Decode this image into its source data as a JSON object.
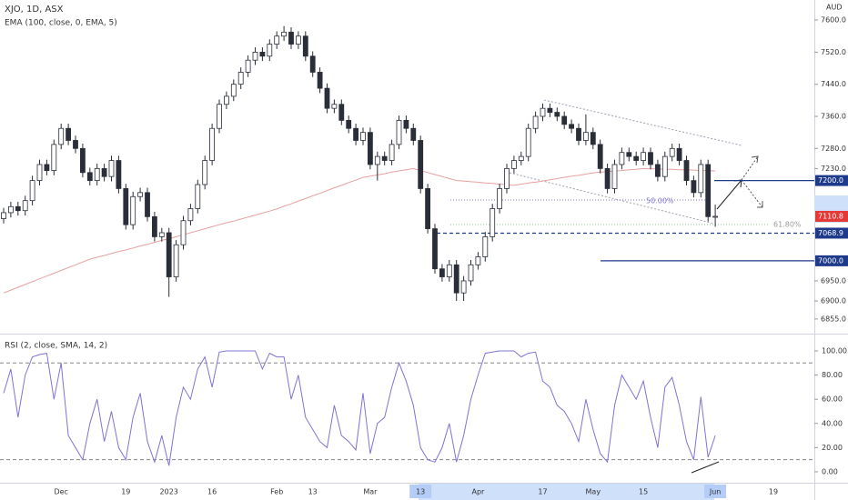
{
  "chart_data": {
    "type": "candlestick",
    "title": "XJO, 1D, ASX",
    "indicator_label": "EMA (100, close, 0, EMA, 5)",
    "currency": "AUD",
    "categories": [
      null,
      null,
      null,
      null,
      null,
      null,
      null,
      null,
      "Dec",
      null,
      null,
      null,
      null,
      null,
      null,
      null,
      null,
      "19",
      null,
      null,
      null,
      null,
      null,
      "2023",
      null,
      null,
      null,
      null,
      null,
      "16",
      null,
      null,
      null,
      null,
      null,
      null,
      null,
      null,
      "Feb",
      null,
      null,
      null,
      null,
      "13",
      null,
      null,
      null,
      null,
      null,
      null,
      null,
      "Mar",
      null,
      null,
      null,
      null,
      null,
      null,
      "13",
      null,
      null,
      null,
      null,
      null,
      null,
      null,
      "Apr",
      null,
      null,
      null,
      null,
      null,
      null,
      null,
      null,
      "17",
      null,
      null,
      null,
      null,
      null,
      null,
      "May",
      null,
      null,
      null,
      null,
      null,
      null,
      "15",
      null,
      null,
      null,
      null,
      null,
      null,
      null,
      null,
      null,
      "Jun"
    ],
    "future_labels": [
      "19"
    ],
    "open": [
      7105,
      7120,
      7135,
      7125,
      7150,
      7200,
      7240,
      7225,
      7290,
      7330,
      7300,
      7280,
      7220,
      7200,
      7230,
      7210,
      7250,
      7180,
      7090,
      7160,
      7170,
      7110,
      7060,
      7070,
      6960,
      7040,
      7100,
      7130,
      7190,
      7250,
      7330,
      7390,
      7410,
      7440,
      7470,
      7500,
      7520,
      7510,
      7540,
      7560,
      7570,
      7540,
      7560,
      7510,
      7470,
      7430,
      7380,
      7390,
      7350,
      7330,
      7300,
      7320,
      7240,
      7260,
      7250,
      7290,
      7350,
      7330,
      7300,
      7180,
      7080,
      6980,
      6960,
      6990,
      6920,
      6950,
      6990,
      7010,
      7060,
      7130,
      7180,
      7230,
      7250,
      7260,
      7330,
      7360,
      7380,
      7370,
      7360,
      7340,
      7330,
      7300,
      7320,
      7290,
      7230,
      7180,
      7240,
      7270,
      7260,
      7250,
      7270,
      7240,
      7210,
      7260,
      7280,
      7250,
      7200,
      7170,
      7240,
      7110
    ],
    "high": [
      7132,
      7147,
      7147,
      7162,
      7212,
      7252,
      7252,
      7302,
      7342,
      7342,
      7312,
      7292,
      7232,
      7242,
      7242,
      7262,
      7262,
      7192,
      7172,
      7182,
      7182,
      7122,
      7082,
      7082,
      7052,
      7112,
      7142,
      7202,
      7262,
      7342,
      7402,
      7422,
      7452,
      7482,
      7512,
      7532,
      7532,
      7552,
      7572,
      7585,
      7582,
      7572,
      7572,
      7522,
      7482,
      7442,
      7402,
      7402,
      7362,
      7342,
      7332,
      7332,
      7272,
      7272,
      7302,
      7362,
      7362,
      7342,
      7312,
      7192,
      7092,
      6992,
      7002,
      7002,
      6962,
      7002,
      7022,
      7072,
      7142,
      7192,
      7242,
      7262,
      7272,
      7342,
      7372,
      7392,
      7392,
      7382,
      7372,
      7352,
      7342,
      7365,
      7332,
      7302,
      7242,
      7252,
      7282,
      7282,
      7272,
      7282,
      7282,
      7252,
      7272,
      7292,
      7292,
      7262,
      7212,
      7252,
      7252,
      7140
    ],
    "low": [
      7093,
      7108,
      7113,
      7113,
      7138,
      7188,
      7213,
      7213,
      7278,
      7288,
      7268,
      7208,
      7188,
      7188,
      7198,
      7198,
      7168,
      7078,
      7078,
      7148,
      7098,
      7048,
      7048,
      6910,
      6948,
      7028,
      7088,
      7118,
      7178,
      7238,
      7318,
      7378,
      7398,
      7428,
      7458,
      7488,
      7498,
      7498,
      7528,
      7548,
      7528,
      7528,
      7498,
      7458,
      7418,
      7368,
      7368,
      7338,
      7318,
      7288,
      7288,
      7228,
      7200,
      7238,
      7238,
      7278,
      7318,
      7288,
      7168,
      7068,
      6968,
      6948,
      6948,
      6900,
      6900,
      6938,
      6978,
      6998,
      7048,
      7118,
      7168,
      7218,
      7238,
      7248,
      7318,
      7348,
      7358,
      7348,
      7328,
      7318,
      7288,
      7288,
      7278,
      7218,
      7168,
      7168,
      7228,
      7248,
      7238,
      7238,
      7228,
      7198,
      7198,
      7248,
      7238,
      7188,
      7158,
      7158,
      7098,
      7085
    ],
    "close": [
      7120,
      7135,
      7125,
      7150,
      7200,
      7240,
      7225,
      7290,
      7330,
      7300,
      7280,
      7220,
      7200,
      7230,
      7210,
      7250,
      7180,
      7090,
      7160,
      7170,
      7110,
      7060,
      7070,
      6960,
      7040,
      7100,
      7130,
      7190,
      7250,
      7330,
      7390,
      7410,
      7440,
      7470,
      7500,
      7520,
      7510,
      7540,
      7560,
      7570,
      7540,
      7560,
      7510,
      7470,
      7430,
      7380,
      7390,
      7350,
      7330,
      7300,
      7320,
      7240,
      7260,
      7250,
      7290,
      7350,
      7330,
      7300,
      7180,
      7080,
      6980,
      6960,
      6990,
      6920,
      6950,
      6990,
      7010,
      7060,
      7130,
      7180,
      7230,
      7250,
      7260,
      7330,
      7360,
      7380,
      7370,
      7360,
      7340,
      7330,
      7300,
      7320,
      7290,
      7230,
      7180,
      7240,
      7270,
      7260,
      7250,
      7270,
      7240,
      7210,
      7260,
      7280,
      7250,
      7200,
      7170,
      7240,
      7110,
      7110.8
    ],
    "up_color": "#ffffff",
    "down_color": "#2a2e39",
    "wick_color": "#2a2e39",
    "ema": {
      "color": "#e8a0a0",
      "values": [
        6920,
        6927,
        6934,
        6941,
        6948,
        6955,
        6962,
        6969,
        6976,
        6983,
        6990,
        6997,
        7004,
        7009,
        7013,
        7018,
        7023,
        7027,
        7032,
        7037,
        7041,
        7046,
        7051,
        7055,
        7060,
        7065,
        7070,
        7075,
        7080,
        7085,
        7090,
        7095,
        7099,
        7104,
        7109,
        7114,
        7119,
        7124,
        7129,
        7136,
        7142,
        7149,
        7155,
        7162,
        7168,
        7175,
        7182,
        7188,
        7195,
        7201,
        7208,
        7211,
        7214,
        7217,
        7221,
        7224,
        7227,
        7230,
        7225,
        7220,
        7215,
        7210,
        7205,
        7200,
        7199,
        7197,
        7196,
        7194,
        7193,
        7191,
        7190,
        7188,
        7191,
        7194,
        7196,
        7199,
        7202,
        7205,
        7208,
        7211,
        7213,
        7216,
        7219,
        7221,
        7222,
        7224,
        7225,
        7227,
        7228,
        7230,
        7229,
        7229,
        7228,
        7228,
        7227,
        7227,
        7226,
        7225,
        7225,
        7224
      ]
    },
    "ylim": [
      6823,
      7650
    ],
    "yticks": [
      {
        "value": 7600,
        "label": "7600.0"
      },
      {
        "value": 7520,
        "label": "7520.0"
      },
      {
        "value": 7440,
        "label": "7440.0"
      },
      {
        "value": 7360,
        "label": "7360.0"
      },
      {
        "value": 7280,
        "label": "7280.0"
      },
      {
        "value": 7230,
        "label": "7230.0"
      },
      {
        "value": 6950,
        "label": "6950.0"
      },
      {
        "value": 6900,
        "label": "6900.0"
      },
      {
        "value": 6855,
        "label": "6855.0"
      }
    ],
    "price_levels": [
      {
        "value": 7200,
        "label": "7200.0",
        "color": "#1e3a8a",
        "style": "solid"
      },
      {
        "value": 7068.9,
        "label": "7068.9",
        "color": "#1e3a8a",
        "style": "dashed"
      },
      {
        "value": 7000,
        "label": "7000.0",
        "color": "#1e3a8a",
        "style": "solid"
      }
    ],
    "last_price": {
      "value": 7110.8,
      "label": "7110.8",
      "color": "#e53935"
    },
    "fib_labels": [
      "50.00%",
      "61.80%"
    ],
    "rsi": {
      "label": "RSI (2, close, SMA, 14, 2)",
      "color": "#7e74d4",
      "values": [
        65,
        85,
        45,
        80,
        95,
        97,
        98,
        60,
        90,
        30,
        20,
        10,
        40,
        60,
        25,
        50,
        20,
        10,
        45,
        65,
        25,
        8,
        30,
        5,
        45,
        70,
        60,
        85,
        95,
        70,
        99,
        100,
        100,
        100,
        100,
        100,
        85,
        98,
        95,
        95,
        60,
        80,
        45,
        35,
        25,
        20,
        55,
        30,
        25,
        18,
        65,
        15,
        40,
        45,
        70,
        90,
        75,
        55,
        20,
        10,
        8,
        20,
        40,
        8,
        30,
        60,
        80,
        98,
        99,
        100,
        100,
        100,
        95,
        98,
        99,
        75,
        70,
        55,
        50,
        40,
        25,
        60,
        35,
        15,
        8,
        55,
        80,
        70,
        60,
        75,
        45,
        20,
        70,
        78,
        55,
        25,
        10,
        62,
        12,
        30
      ],
      "ylim": [
        -8.3,
        112
      ],
      "yticks": [
        {
          "value": 100,
          "label": "100.00"
        },
        {
          "value": 80,
          "label": "80.00"
        },
        {
          "value": 60,
          "label": "60.00"
        },
        {
          "value": 40,
          "label": "40.00"
        },
        {
          "value": 20,
          "label": "20.00"
        },
        {
          "value": 0,
          "label": "0.00"
        }
      ],
      "bands": [
        90,
        10
      ]
    }
  }
}
